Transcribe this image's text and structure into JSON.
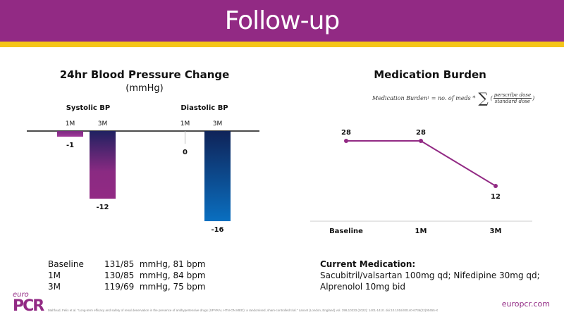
{
  "header": {
    "title": "Follow-up"
  },
  "colors": {
    "brand_purple": "#922a84",
    "gold": "#f5c518",
    "line": "#922a84"
  },
  "bp_chart": {
    "title": "24hr Blood Pressure Change",
    "subtitle": "(mmHg)"
  },
  "med_chart": {
    "title": "Medication Burden",
    "formula": {
      "lhs": "Medication Burden",
      "sup": "1",
      "mid": "= no. of meds *",
      "numerator": "perscribe dose",
      "denominator": "standard dose"
    }
  },
  "chart_data": [
    {
      "type": "bar",
      "title": "24hr Blood Pressure Change",
      "subtitle": "(mmHg)",
      "groups": [
        "Systolic BP",
        "Diastolic BP"
      ],
      "categories": [
        "1M",
        "3M"
      ],
      "series": [
        {
          "name": "Systolic BP",
          "values": [
            -1,
            -12
          ],
          "labels": [
            "-1",
            "-12"
          ]
        },
        {
          "name": "Diastolic BP",
          "values": [
            0,
            -16
          ],
          "labels": [
            "0",
            "-16"
          ]
        }
      ],
      "ylim": [
        -16,
        0
      ],
      "grid": false
    },
    {
      "type": "line",
      "title": "Medication Burden",
      "categories": [
        "Baseline",
        "1M",
        "3M"
      ],
      "values": [
        28,
        28,
        12
      ],
      "labels": [
        "28",
        "28",
        "12"
      ],
      "ylim": [
        0,
        30
      ],
      "grid": false
    }
  ],
  "bp_table": [
    {
      "time": "Baseline",
      "value": "131/85  mmHg, 81 bpm"
    },
    {
      "time": "1M",
      "value": "130/85  mmHg, 84 bpm"
    },
    {
      "time": "3M",
      "value": "119/69  mmHg, 75 bpm"
    }
  ],
  "medication": {
    "heading": "Current Medication:",
    "text": "Sacubitril/valsartan 100mg qd; Nifedipine 30mg qd; Alprenolol 10mg bid"
  },
  "footer": {
    "logo_top": "euro",
    "logo_main": "PCR",
    "reference": "Mahfoud, Felix et al. \"Long-term efficacy and safety of renal denervation in the presence of antihypertensive drugs (SPYRAL HTN-ON MED): a randomised, sham-controlled trial.\" Lancet (London, England) vol. 399,10333 (2022): 1401-1410. doi:10.1016/S0140-6736(22)00455-X",
    "site": "europcr.com"
  }
}
